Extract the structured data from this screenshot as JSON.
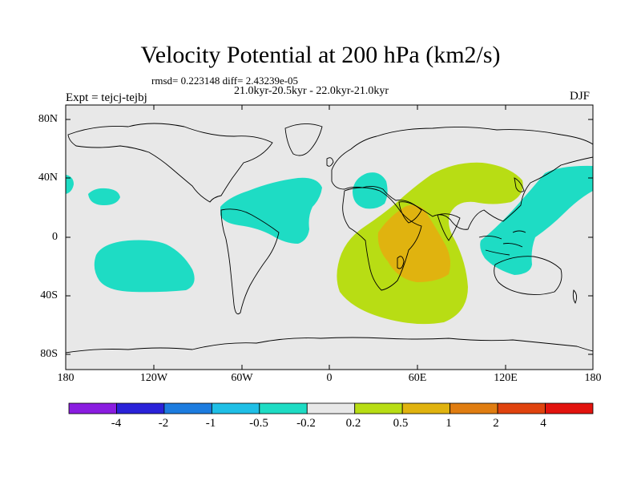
{
  "title": "Velocity Potential at 200 hPa (km2/s)",
  "stats_line": "rmsd= 0.223148 diff= 2.43239e-05",
  "period_line": "21.0kyr-20.5kyr - 22.0kyr-21.0kyr",
  "experiment_label": "Expt = tejcj-tejbj",
  "season_label": "DJF",
  "y_axis": {
    "ticks": [
      {
        "label": "80N",
        "value": 80
      },
      {
        "label": "40N",
        "value": 40
      },
      {
        "label": "0",
        "value": 0
      },
      {
        "label": "40S",
        "value": -40
      },
      {
        "label": "80S",
        "value": -80
      }
    ],
    "range": [
      -90,
      90
    ]
  },
  "x_axis": {
    "ticks": [
      {
        "label": "180",
        "value": -180
      },
      {
        "label": "120W",
        "value": -120
      },
      {
        "label": "60W",
        "value": -60
      },
      {
        "label": "0",
        "value": 0
      },
      {
        "label": "60E",
        "value": 60
      },
      {
        "label": "120E",
        "value": 120
      },
      {
        "label": "180",
        "value": 180
      }
    ],
    "range": [
      -180,
      180
    ]
  },
  "colorbar": {
    "colors": [
      "#8a1de0",
      "#2a22d8",
      "#1d7cdf",
      "#1fbfe6",
      "#1edcc4",
      "#e8e8e8",
      "#b8dd14",
      "#e0b30f",
      "#e07d11",
      "#e0430e",
      "#e2130e"
    ],
    "labels": [
      "-4",
      "-2",
      "-1",
      "-0.5",
      "-0.2",
      "0.2",
      "0.5",
      "1",
      "2",
      "4"
    ]
  },
  "colors": {
    "background": "#e8e8e8",
    "negative_fill": "#1edcc4",
    "positive_fill_1": "#b8dd14",
    "positive_fill_2": "#e0b30f"
  }
}
